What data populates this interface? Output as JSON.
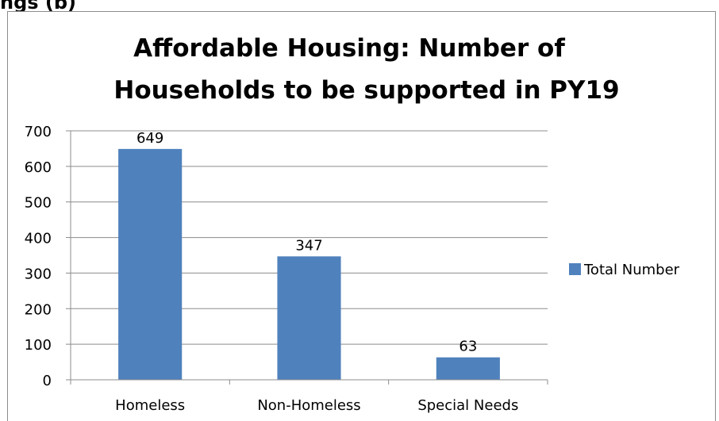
{
  "header_fragment": "ngs (b)",
  "chart_data": {
    "type": "bar",
    "title_lines": [
      "Affordable Housing: Number of",
      "Households to be supported in PY19"
    ],
    "categories": [
      "Homeless",
      "Non-Homeless",
      "Special Needs"
    ],
    "series": [
      {
        "name": "Total Number",
        "values": [
          649,
          347,
          63
        ],
        "color": "#4f81bd"
      }
    ],
    "data_labels": [
      "649",
      "347",
      "63"
    ],
    "y_ticks": [
      "0",
      "100",
      "200",
      "300",
      "400",
      "500",
      "600",
      "700"
    ],
    "ylim": [
      0,
      700
    ],
    "grid": true,
    "legend_position": "right",
    "xlabel": "",
    "ylabel": ""
  }
}
